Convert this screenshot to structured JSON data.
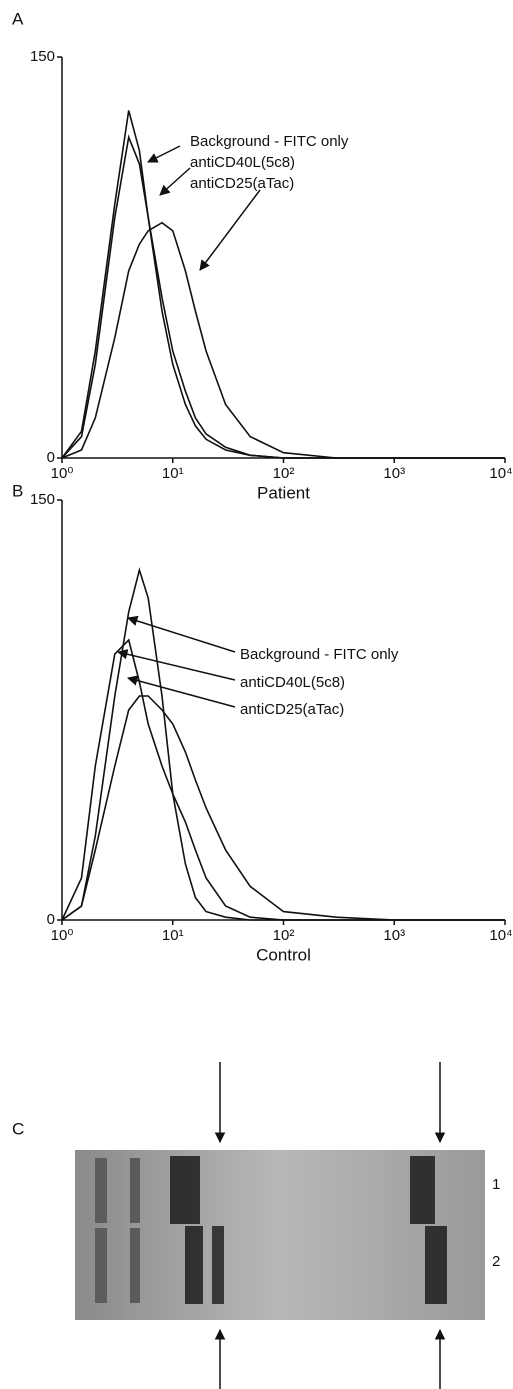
{
  "panel_labels": [
    "A",
    "B",
    "C"
  ],
  "chart_data": [
    {
      "type": "line",
      "x_label": "Patient",
      "log_x": true,
      "xlim": [
        1,
        10000
      ],
      "ylim": [
        0,
        150
      ],
      "xticks": [
        {
          "value": 1,
          "label": "10⁰"
        },
        {
          "value": 10,
          "label": "10¹"
        },
        {
          "value": 100,
          "label": "10²"
        },
        {
          "value": 1000,
          "label": "10³"
        },
        {
          "value": 10000,
          "label": "10⁴"
        }
      ],
      "yticks": [
        0,
        150
      ],
      "x": [
        1,
        1.5,
        2,
        3,
        4,
        5,
        6,
        8,
        10,
        13,
        16,
        20,
        30,
        50,
        100,
        300,
        1000,
        10000
      ],
      "series": [
        {
          "name": "Background - FITC only",
          "color": "#111111",
          "values": [
            0,
            10,
            40,
            95,
            130,
            115,
            90,
            55,
            35,
            20,
            12,
            7,
            3,
            1,
            0,
            0,
            0,
            0
          ]
        },
        {
          "name": "antiCD40L(5c8)",
          "color": "#111111",
          "values": [
            0,
            8,
            35,
            90,
            120,
            110,
            90,
            60,
            40,
            25,
            15,
            9,
            4,
            1,
            0,
            0,
            0,
            0
          ]
        },
        {
          "name": "antiCD25(aTac)",
          "color": "#111111",
          "values": [
            0,
            3,
            15,
            45,
            70,
            80,
            85,
            88,
            85,
            70,
            55,
            40,
            20,
            8,
            2,
            0,
            0,
            0
          ]
        }
      ]
    },
    {
      "type": "line",
      "x_label": "Control",
      "log_x": true,
      "xlim": [
        1,
        10000
      ],
      "ylim": [
        0,
        150
      ],
      "xticks": [
        {
          "value": 1,
          "label": "10⁰"
        },
        {
          "value": 10,
          "label": "10¹"
        },
        {
          "value": 100,
          "label": "10²"
        },
        {
          "value": 1000,
          "label": "10³"
        },
        {
          "value": 10000,
          "label": "10⁴"
        }
      ],
      "yticks": [
        0,
        150
      ],
      "x": [
        1,
        1.5,
        2,
        3,
        4,
        5,
        6,
        8,
        10,
        13,
        16,
        20,
        30,
        50,
        100,
        300,
        1000,
        10000
      ],
      "series": [
        {
          "name": "Background - FITC only",
          "color": "#111111",
          "values": [
            0,
            5,
            30,
            80,
            110,
            125,
            115,
            80,
            45,
            20,
            8,
            3,
            1,
            0,
            0,
            0,
            0,
            0
          ]
        },
        {
          "name": "antiCD40L(5c8)",
          "color": "#111111",
          "values": [
            0,
            15,
            55,
            95,
            100,
            85,
            70,
            55,
            45,
            35,
            25,
            15,
            5,
            1,
            0,
            0,
            0,
            0
          ]
        },
        {
          "name": "antiCD25(aTac)",
          "color": "#111111",
          "values": [
            0,
            5,
            25,
            55,
            75,
            80,
            80,
            75,
            70,
            60,
            50,
            40,
            25,
            12,
            3,
            1,
            0,
            0
          ]
        }
      ]
    }
  ],
  "gel": {
    "lane_labels": [
      "1",
      "2"
    ]
  }
}
